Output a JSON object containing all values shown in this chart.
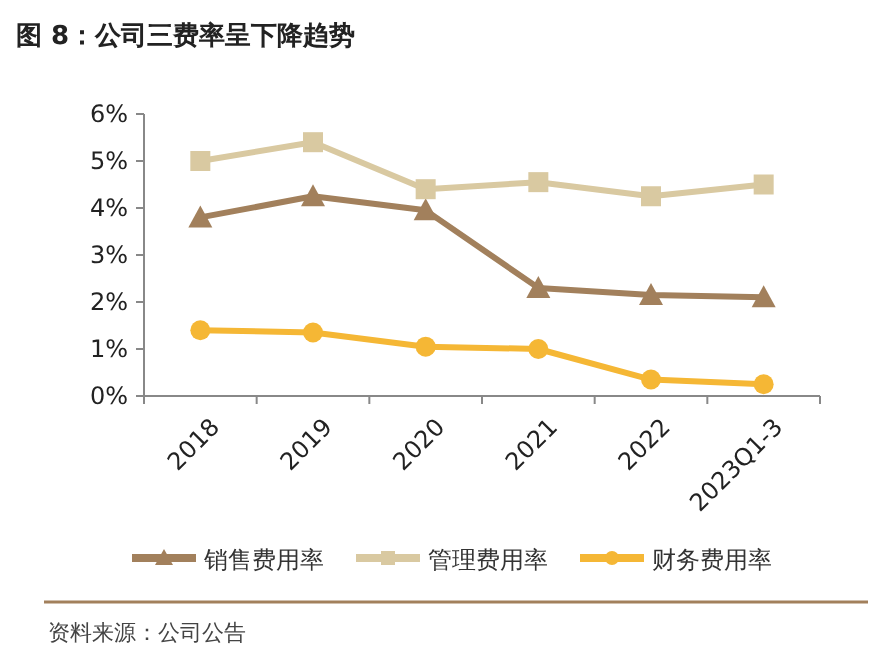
{
  "chart_data": {
    "type": "line",
    "title": "图 8：公司三费率呈下降趋势",
    "categories": [
      "2018",
      "2019",
      "2020",
      "2021",
      "2022",
      "2023Q1-3"
    ],
    "series": [
      {
        "name": "销售费用率",
        "color": "#a2805c",
        "marker": "triangle",
        "values": [
          3.8,
          4.25,
          3.95,
          2.3,
          2.15,
          2.1
        ]
      },
      {
        "name": "管理费用率",
        "color": "#d9c9a1",
        "marker": "square",
        "values": [
          5.0,
          5.4,
          4.4,
          4.55,
          4.25,
          4.5
        ]
      },
      {
        "name": "财务费用率",
        "color": "#f5b735",
        "marker": "circle",
        "values": [
          1.4,
          1.35,
          1.05,
          1.0,
          0.35,
          0.25
        ]
      }
    ],
    "ylim": [
      0,
      6
    ],
    "yticks": [
      {
        "value": 0,
        "label": "0%"
      },
      {
        "value": 1,
        "label": "1%"
      },
      {
        "value": 2,
        "label": "2%"
      },
      {
        "value": 3,
        "label": "3%"
      },
      {
        "value": 4,
        "label": "4%"
      },
      {
        "value": 5,
        "label": "5%"
      },
      {
        "value": 6,
        "label": "6%"
      }
    ],
    "grid": false,
    "legend": "bottom",
    "line_style": "solid",
    "annotations": [
      "资料来源：公司公告"
    ]
  }
}
